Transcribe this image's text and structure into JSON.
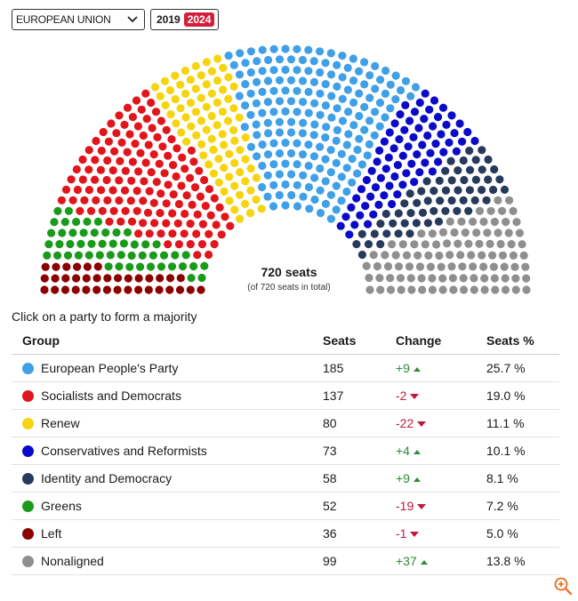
{
  "filters": {
    "region": "EUROPEAN UNION",
    "years": [
      {
        "label": "2019",
        "active": false
      },
      {
        "label": "2024",
        "active": true
      }
    ]
  },
  "chart_data": {
    "type": "parliament",
    "total_label": "720 seats",
    "sub_label": "(of 720 seats in total)",
    "total": 720,
    "parties": [
      {
        "name": "Left",
        "seats": 36,
        "color": "#8b0000"
      },
      {
        "name": "Greens",
        "seats": 52,
        "color": "#1a9a1a"
      },
      {
        "name": "Socialists and Democrats",
        "seats": 137,
        "color": "#e0161c"
      },
      {
        "name": "Renew",
        "seats": 80,
        "color": "#f6d40f"
      },
      {
        "name": "European People's Party",
        "seats": 185,
        "color": "#3fa0e8"
      },
      {
        "name": "Conservatives and Reformists",
        "seats": 73,
        "color": "#0a0ac8"
      },
      {
        "name": "Identity and Democracy",
        "seats": 58,
        "color": "#273a5c"
      },
      {
        "name": "Nonaligned",
        "seats": 99,
        "color": "#8f8f8f"
      }
    ]
  },
  "prompt": "Click on a party to form a majority",
  "table": {
    "headers": {
      "group": "Group",
      "seats": "Seats",
      "change": "Change",
      "pct": "Seats %"
    },
    "rows": [
      {
        "group": "European People's Party",
        "color": "#3fa0e8",
        "seats": "185",
        "change": "+9",
        "dir": "up",
        "pct": "25.7 %"
      },
      {
        "group": "Socialists and Democrats",
        "color": "#e0161c",
        "seats": "137",
        "change": "-2",
        "dir": "down",
        "pct": "19.0 %"
      },
      {
        "group": "Renew",
        "color": "#f6d40f",
        "seats": "80",
        "change": "-22",
        "dir": "down",
        "pct": "11.1 %"
      },
      {
        "group": "Conservatives and Reformists",
        "color": "#0a0ac8",
        "seats": "73",
        "change": "+4",
        "dir": "up",
        "pct": "10.1 %"
      },
      {
        "group": "Identity and Democracy",
        "color": "#273a5c",
        "seats": "58",
        "change": "+9",
        "dir": "up",
        "pct": "8.1 %"
      },
      {
        "group": "Greens",
        "color": "#1a9a1a",
        "seats": "52",
        "change": "-19",
        "dir": "down",
        "pct": "7.2 %"
      },
      {
        "group": "Left",
        "color": "#8b0000",
        "seats": "36",
        "change": "-1",
        "dir": "down",
        "pct": "5.0 %"
      },
      {
        "group": "Nonaligned",
        "color": "#8f8f8f",
        "seats": "99",
        "change": "+37",
        "dir": "up",
        "pct": "13.8 %"
      }
    ]
  },
  "icons": {
    "dropdown": "chevron-down-icon",
    "zoom": "zoom-in-icon"
  }
}
